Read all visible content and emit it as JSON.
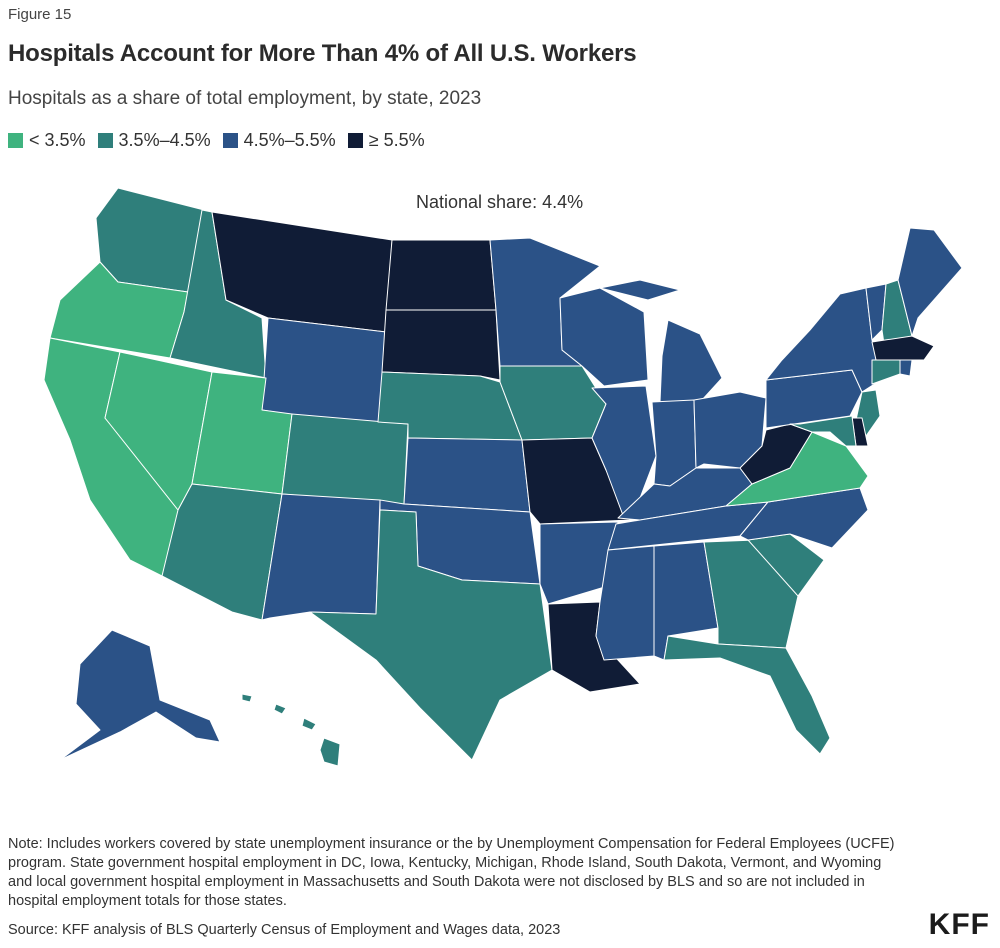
{
  "figure_label": "Figure 15",
  "title": "Hospitals Account for More Than 4% of All U.S. Workers",
  "subtitle": "Hospitals as a share of total employment, by state, 2023",
  "legend": [
    {
      "label": "< 3.5%",
      "color": "#3fb37f"
    },
    {
      "label": "3.5%–4.5%",
      "color": "#2f7f7b"
    },
    {
      "label": "4.5%–5.5%",
      "color": "#2b5287"
    },
    {
      "label": "≥ 5.5%",
      "color": "#101c36"
    }
  ],
  "annotation": "National share: 4.4%",
  "states": [
    {
      "id": "WA",
      "bin": 1
    },
    {
      "id": "OR",
      "bin": 0
    },
    {
      "id": "CA",
      "bin": 0
    },
    {
      "id": "NV",
      "bin": 0
    },
    {
      "id": "ID",
      "bin": 1
    },
    {
      "id": "MT",
      "bin": 3
    },
    {
      "id": "WY",
      "bin": 2
    },
    {
      "id": "UT",
      "bin": 0
    },
    {
      "id": "AZ",
      "bin": 1
    },
    {
      "id": "CO",
      "bin": 1
    },
    {
      "id": "NM",
      "bin": 2
    },
    {
      "id": "ND",
      "bin": 3
    },
    {
      "id": "SD",
      "bin": 3
    },
    {
      "id": "NE",
      "bin": 1
    },
    {
      "id": "KS",
      "bin": 2
    },
    {
      "id": "OK",
      "bin": 2
    },
    {
      "id": "TX",
      "bin": 1
    },
    {
      "id": "MN",
      "bin": 2
    },
    {
      "id": "IA",
      "bin": 1
    },
    {
      "id": "MO",
      "bin": 3
    },
    {
      "id": "AR",
      "bin": 2
    },
    {
      "id": "LA",
      "bin": 3
    },
    {
      "id": "WI",
      "bin": 2
    },
    {
      "id": "IL",
      "bin": 2
    },
    {
      "id": "MI",
      "bin": 2
    },
    {
      "id": "IN",
      "bin": 2
    },
    {
      "id": "OH",
      "bin": 2
    },
    {
      "id": "KY",
      "bin": 2
    },
    {
      "id": "TN",
      "bin": 2
    },
    {
      "id": "MS",
      "bin": 2
    },
    {
      "id": "AL",
      "bin": 2
    },
    {
      "id": "GA",
      "bin": 1
    },
    {
      "id": "FL",
      "bin": 1
    },
    {
      "id": "SC",
      "bin": 1
    },
    {
      "id": "NC",
      "bin": 2
    },
    {
      "id": "VA",
      "bin": 0
    },
    {
      "id": "WV",
      "bin": 3
    },
    {
      "id": "PA",
      "bin": 2
    },
    {
      "id": "NY",
      "bin": 2
    },
    {
      "id": "VT",
      "bin": 2
    },
    {
      "id": "NH",
      "bin": 1
    },
    {
      "id": "ME",
      "bin": 2
    },
    {
      "id": "MA",
      "bin": 3
    },
    {
      "id": "RI",
      "bin": 2
    },
    {
      "id": "CT",
      "bin": 1
    },
    {
      "id": "NJ",
      "bin": 1
    },
    {
      "id": "DE",
      "bin": 3
    },
    {
      "id": "MD",
      "bin": 1
    },
    {
      "id": "AK",
      "bin": 2
    },
    {
      "id": "HI",
      "bin": 1
    }
  ],
  "note": "Note: Includes workers covered by state unemployment insurance or the by Unemployment Compensation for Federal Employees (UCFE) program. State government hospital employment in DC, Iowa, Kentucky, Michigan, Rhode Island, South Dakota, Vermont, and Wyoming and local government hospital employment in Massachusetts and South Dakota were not disclosed by BLS and so are not included in hospital employment totals for those states.",
  "source": "Source: KFF analysis of BLS Quarterly Census of Employment and Wages data, 2023",
  "logo": "KFF"
}
